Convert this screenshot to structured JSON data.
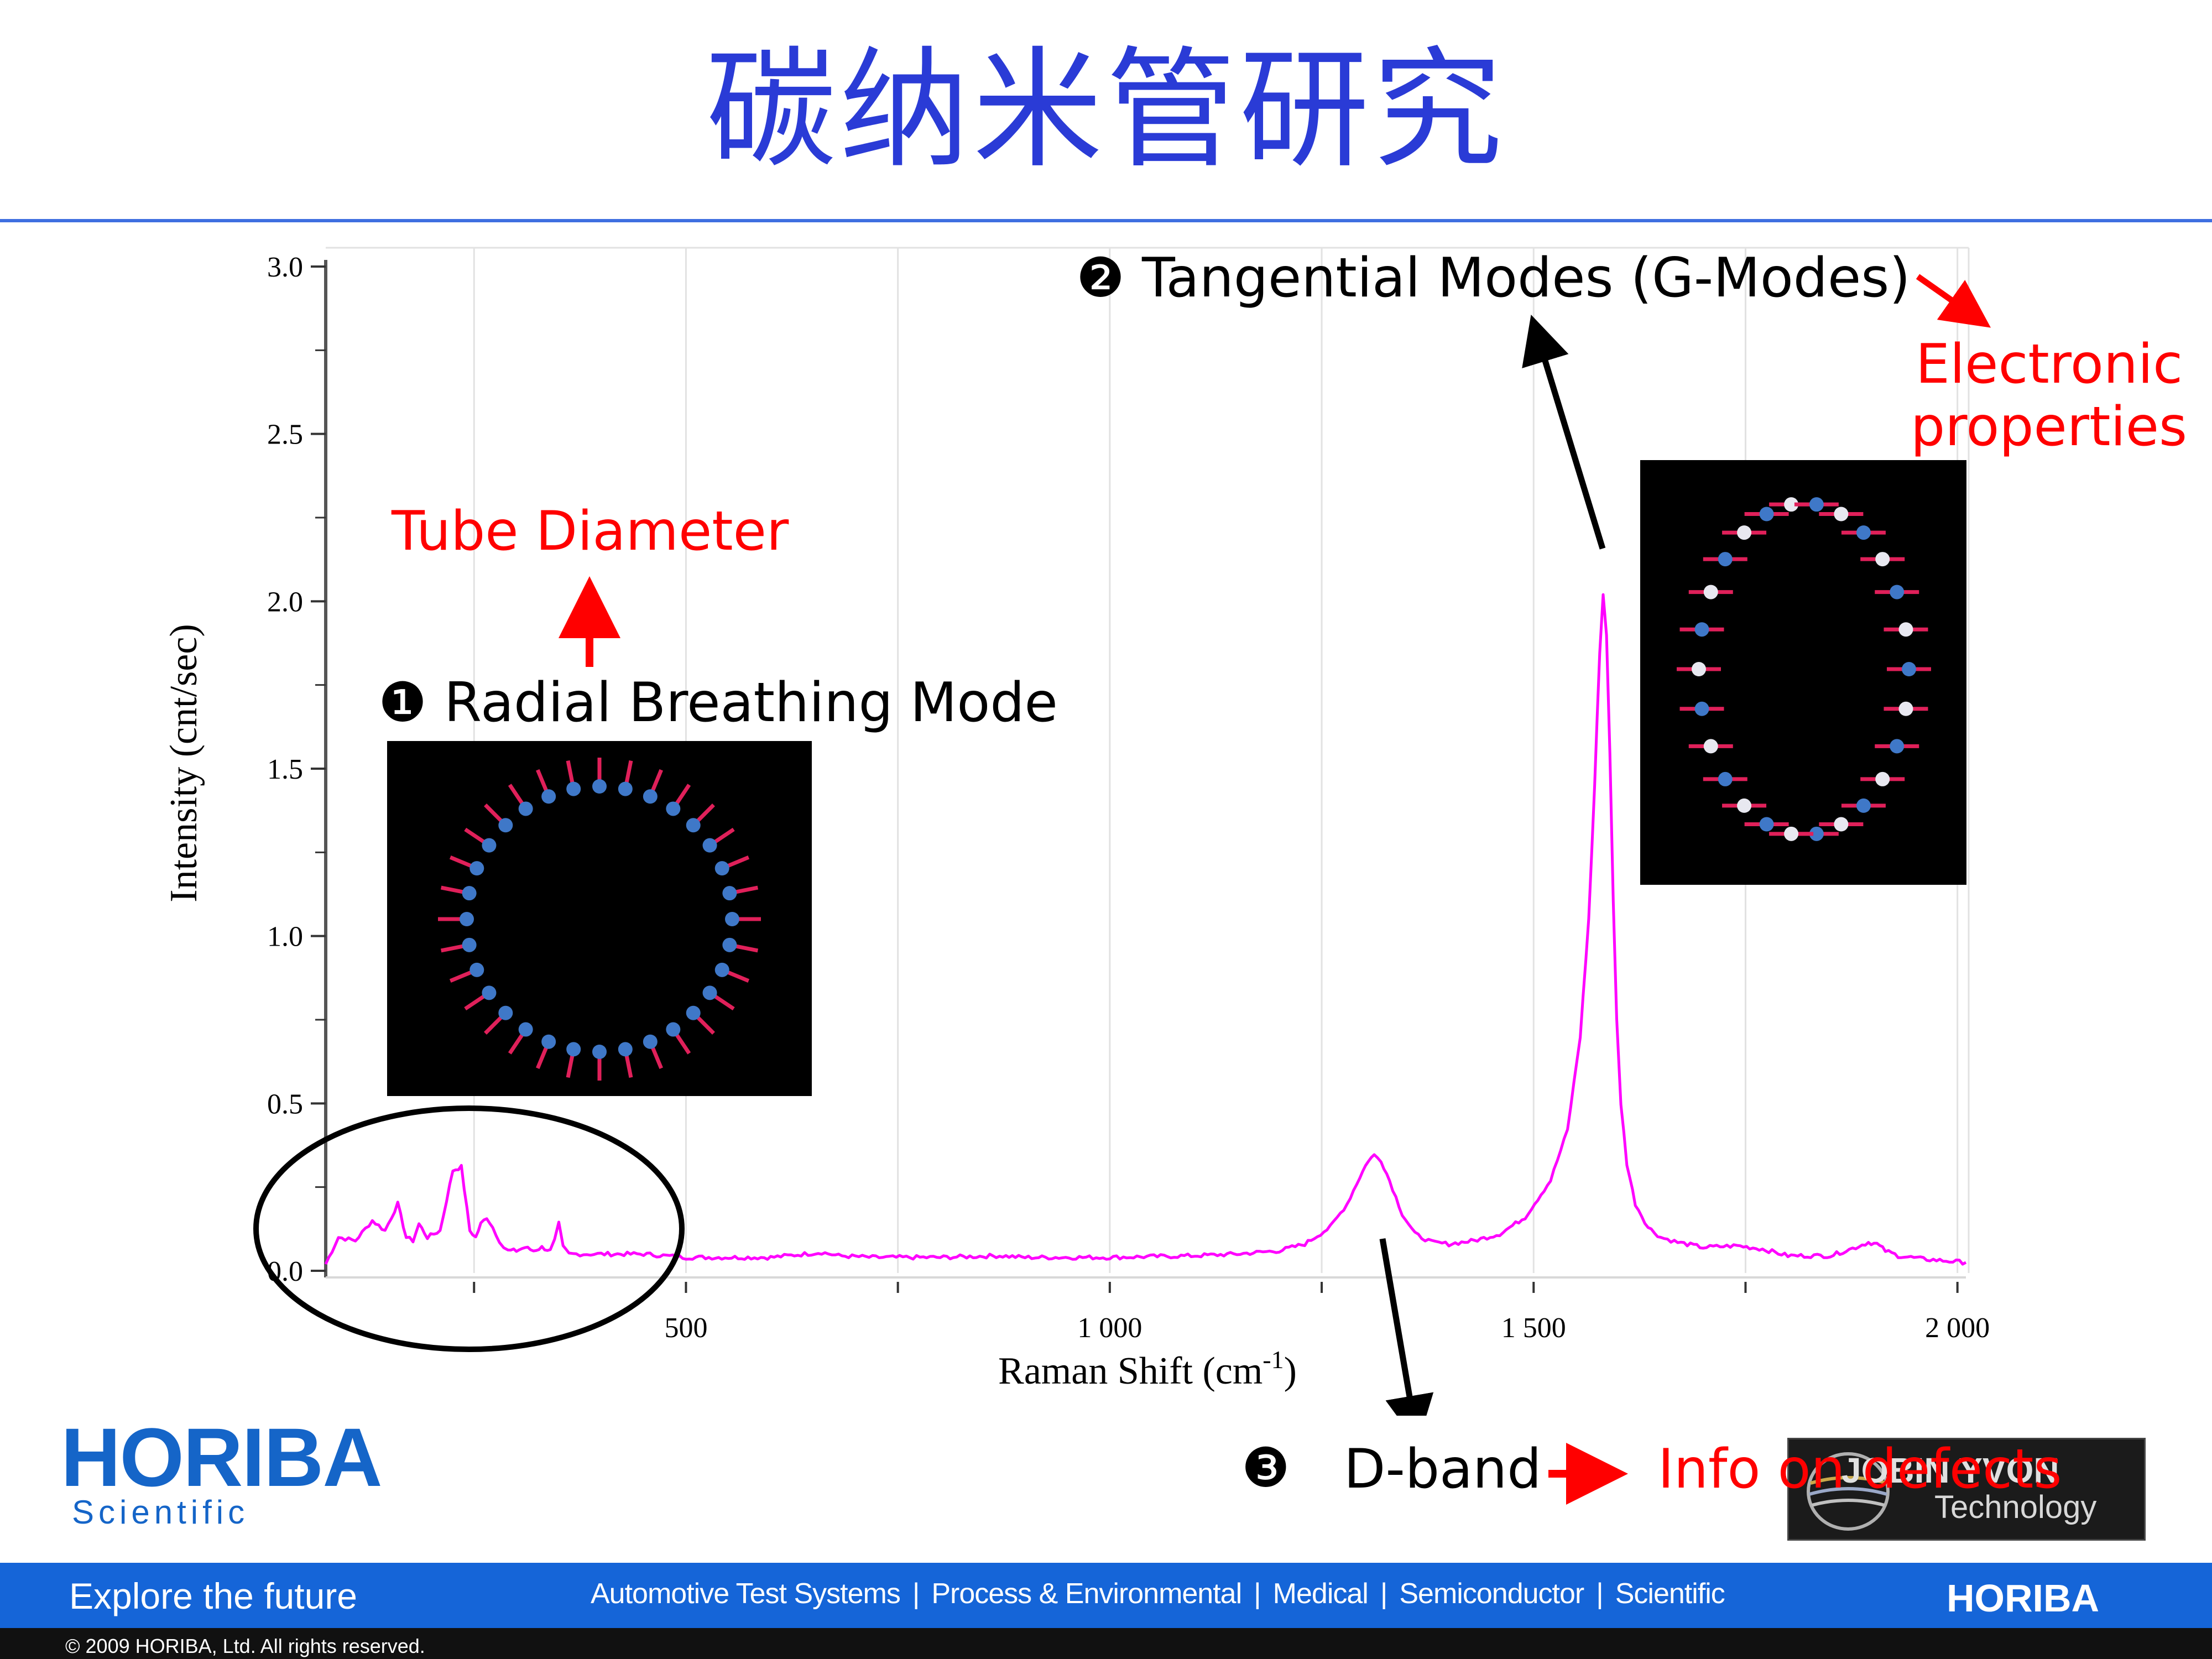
{
  "slide": {
    "title": "碳纳米管研究"
  },
  "chart_data": {
    "type": "line",
    "xlabel": "Raman Shift (cm",
    "xlabel_sup": "-1",
    "xlabel_close": ")",
    "ylabel": "Intensity (cnt/sec)",
    "xlim": [
      75,
      2010
    ],
    "ylim": [
      0,
      3.0
    ],
    "x_ticks": [
      500,
      1000,
      1500,
      2000
    ],
    "x_tick_labels": [
      "500",
      "1 000",
      "1 500",
      "2 000"
    ],
    "y_ticks": [
      0.0,
      0.5,
      1.0,
      1.5,
      2.0,
      2.5,
      3.0
    ],
    "y_tick_labels": [
      "0.0",
      "0.5",
      "1.0",
      "1.5",
      "2.0",
      "2.5",
      "3.0"
    ],
    "grid": true,
    "series_color": "#ff00ff",
    "series": [
      {
        "x": [
          75,
          90,
          110,
          130,
          145,
          160,
          170,
          178,
          185,
          195,
          210,
          225,
          235,
          245,
          252,
          258,
          265,
          272,
          280,
          285,
          290,
          300,
          310,
          320,
          330,
          340,
          345,
          350,
          355,
          362,
          375,
          400,
          450,
          500,
          550,
          600,
          640,
          660,
          680,
          720,
          800,
          870,
          900,
          1000,
          1100,
          1150,
          1200,
          1230,
          1260,
          1280,
          1295,
          1305,
          1312,
          1320,
          1330,
          1345,
          1360,
          1380,
          1400,
          1430,
          1460,
          1490,
          1520,
          1540,
          1555,
          1565,
          1572,
          1578,
          1582,
          1586,
          1590,
          1594,
          1598,
          1603,
          1610,
          1620,
          1635,
          1650,
          1670,
          1700,
          1740,
          1770,
          1800,
          1850,
          1880,
          1895,
          1905,
          1915,
          1930,
          1960,
          2010
        ],
        "y": [
          0.02,
          0.1,
          0.09,
          0.15,
          0.12,
          0.2,
          0.1,
          0.09,
          0.14,
          0.1,
          0.12,
          0.3,
          0.31,
          0.12,
          0.1,
          0.14,
          0.16,
          0.13,
          0.09,
          0.07,
          0.06,
          0.06,
          0.07,
          0.06,
          0.07,
          0.06,
          0.09,
          0.14,
          0.07,
          0.05,
          0.05,
          0.05,
          0.05,
          0.04,
          0.04,
          0.04,
          0.05,
          0.055,
          0.045,
          0.04,
          0.04,
          0.045,
          0.04,
          0.04,
          0.045,
          0.05,
          0.06,
          0.08,
          0.13,
          0.2,
          0.28,
          0.33,
          0.345,
          0.33,
          0.27,
          0.17,
          0.11,
          0.085,
          0.08,
          0.09,
          0.11,
          0.16,
          0.27,
          0.42,
          0.7,
          1.05,
          1.45,
          1.85,
          2.02,
          1.9,
          1.55,
          1.1,
          0.75,
          0.5,
          0.32,
          0.2,
          0.13,
          0.1,
          0.085,
          0.07,
          0.075,
          0.065,
          0.045,
          0.045,
          0.07,
          0.085,
          0.08,
          0.06,
          0.045,
          0.035,
          0.025
        ]
      }
    ],
    "annotations": {
      "rbm": {
        "marker": "❶",
        "label": "Radial Breathing Mode"
      },
      "g_modes": {
        "marker": "❷",
        "label": "Tangential Modes (G-Modes)"
      },
      "d_band": {
        "marker": "❸",
        "label": "D-band"
      },
      "tube_diameter": "Tube Diameter",
      "electronic_1": "Electronic",
      "electronic_2": "properties",
      "defects": "Info on defects"
    }
  },
  "branding": {
    "logo": "HORIBA",
    "logo_sub": "Scientific",
    "jy_line1": "JOBIN YVON",
    "jy_line2": "Technology"
  },
  "footer": {
    "tagline": "Explore the future",
    "nav": [
      "Automotive Test Systems",
      "Process & Environmental",
      "Medical",
      "Semiconductor",
      "Scientific"
    ],
    "logo": "HORIBA",
    "copyright": "© 2009 HORIBA, Ltd. All rights reserved."
  }
}
